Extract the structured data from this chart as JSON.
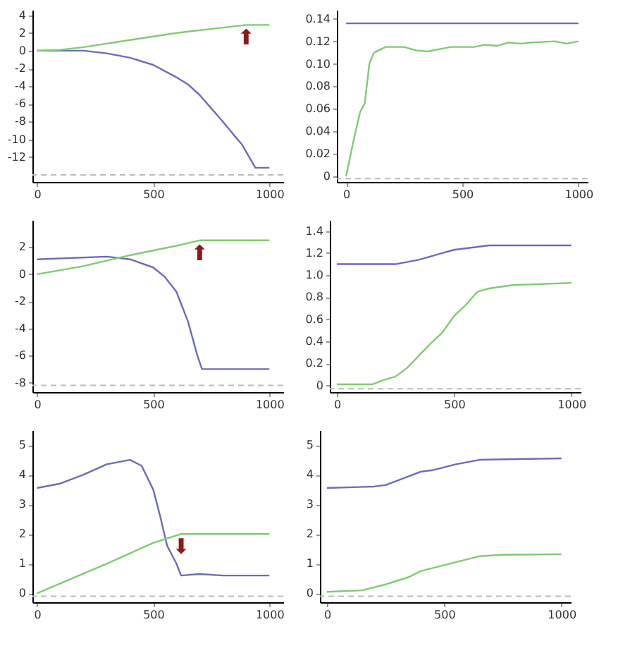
{
  "chart_data": [
    {
      "type": "line",
      "xlim": [
        -20,
        1060
      ],
      "xticks": [
        0,
        500,
        1000
      ],
      "ylim": [
        -14.8,
        4.6
      ],
      "yticks": [
        -12,
        -10,
        -8,
        -6,
        -4,
        -2,
        0,
        2,
        4
      ],
      "grid": false,
      "series": [
        {
          "color": "#6b6bbf",
          "x": [
            0,
            200,
            300,
            400,
            500,
            600,
            650,
            700,
            750,
            800,
            850,
            880,
            940,
            1000
          ],
          "values": [
            0,
            0,
            -0.3,
            -0.8,
            -1.6,
            -3.0,
            -3.8,
            -5.0,
            -6.5,
            -8.0,
            -9.6,
            -10.5,
            -13.2,
            -13.2
          ]
        },
        {
          "color": "#7fcc70",
          "x": [
            0,
            100,
            200,
            400,
            500,
            600,
            800,
            900,
            1000
          ],
          "values": [
            0,
            0.1,
            0.4,
            1.2,
            1.6,
            2.0,
            2.6,
            2.9,
            2.9
          ]
        }
      ],
      "ref_lines": [
        {
          "axis": "y",
          "value": -14,
          "color": "#bbbbbb",
          "line_style": "dashed"
        }
      ],
      "annotations": [
        {
          "text": "⬆",
          "x": 900,
          "y": 2.9
        }
      ]
    },
    {
      "type": "line",
      "xlim": [
        -40,
        1040
      ],
      "xticks": [
        0,
        500,
        1000
      ],
      "ylim": [
        -0.005,
        0.148
      ],
      "yticks": [
        0,
        0.02,
        0.04,
        0.06,
        0.08,
        {
          "value": 0.1,
          "label": "0.10"
        },
        0.12,
        0.14
      ],
      "grid": false,
      "series": [
        {
          "color": "#6b6bbf",
          "x": [
            0,
            1000
          ],
          "values": [
            0.136,
            0.136
          ]
        },
        {
          "color": "#7fcc70",
          "x": [
            0,
            30,
            60,
            80,
            100,
            120,
            170,
            250,
            300,
            350,
            450,
            550,
            600,
            650,
            700,
            750,
            800,
            900,
            950,
            1000
          ],
          "values": [
            0,
            0.03,
            0.057,
            0.065,
            0.1,
            0.11,
            0.115,
            0.115,
            0.112,
            0.111,
            0.115,
            0.115,
            0.117,
            0.116,
            0.119,
            0.118,
            0.119,
            0.12,
            0.118,
            0.12
          ]
        }
      ],
      "ref_lines": [
        {
          "axis": "y",
          "value": -0.002,
          "color": "#bbbbbb",
          "line_style": "dashed"
        }
      ]
    },
    {
      "type": "line",
      "xlim": [
        -20,
        1060
      ],
      "xticks": [
        0,
        500,
        1000
      ],
      "ylim": [
        -8.7,
        4.0
      ],
      "yticks": [
        -8,
        -6,
        -4,
        -2,
        0,
        2
      ],
      "grid": false,
      "series": [
        {
          "color": "#6b6bbf",
          "x": [
            0,
            300,
            400,
            500,
            550,
            600,
            650,
            690,
            710,
            1000
          ],
          "values": [
            1.1,
            1.3,
            1.1,
            0.5,
            -0.2,
            -1.3,
            -3.5,
            -6.0,
            -7.0,
            -7.0
          ]
        },
        {
          "color": "#7fcc70",
          "x": [
            0,
            200,
            400,
            600,
            700,
            1000
          ],
          "values": [
            0,
            0.6,
            1.4,
            2.1,
            2.5,
            2.5
          ]
        }
      ],
      "ref_lines": [
        {
          "axis": "y",
          "value": -8.2,
          "color": "#bbbbbb",
          "line_style": "dashed"
        }
      ],
      "annotations": [
        {
          "text": "⬆",
          "x": 700,
          "y": 2.5
        }
      ]
    },
    {
      "type": "line",
      "xlim": [
        -30,
        1040
      ],
      "xticks": [
        0,
        500,
        1000
      ],
      "ylim": [
        -0.06,
        1.5
      ],
      "yticks": [
        0,
        0.2,
        0.4,
        0.6,
        0.8,
        {
          "value": 1,
          "label": "1.0"
        },
        1.2,
        1.4
      ],
      "grid": false,
      "series": [
        {
          "color": "#6b6bbf",
          "x": [
            0,
            250,
            350,
            450,
            500,
            650,
            1000
          ],
          "values": [
            1.1,
            1.1,
            1.14,
            1.2,
            1.23,
            1.27,
            1.27
          ]
        },
        {
          "color": "#7fcc70",
          "x": [
            0,
            150,
            200,
            250,
            300,
            350,
            400,
            450,
            500,
            550,
            600,
            650,
            750,
            1000
          ],
          "values": [
            0.01,
            0.01,
            0.05,
            0.08,
            0.16,
            0.27,
            0.38,
            0.48,
            0.63,
            0.73,
            0.85,
            0.88,
            0.91,
            0.93
          ]
        }
      ],
      "ref_lines": [
        {
          "axis": "y",
          "value": -0.03,
          "color": "#bbbbbb",
          "line_style": "dashed"
        }
      ]
    },
    {
      "type": "line",
      "xlim": [
        -20,
        1060
      ],
      "xticks": [
        0,
        500,
        1000
      ],
      "ylim": [
        -0.3,
        5.5
      ],
      "yticks": [
        0,
        1,
        2,
        3,
        4,
        5
      ],
      "grid": false,
      "series": [
        {
          "color": "#6b6bbf",
          "x": [
            0,
            100,
            200,
            300,
            400,
            450,
            500,
            530,
            560,
            600,
            620,
            700,
            800,
            1000
          ],
          "values": [
            3.55,
            3.7,
            4.0,
            4.35,
            4.5,
            4.3,
            3.5,
            2.6,
            1.6,
            1.0,
            0.6,
            0.65,
            0.6,
            0.6
          ]
        },
        {
          "color": "#7fcc70",
          "x": [
            0,
            300,
            500,
            620,
            1000
          ],
          "values": [
            0,
            1.0,
            1.7,
            2.0,
            2.0
          ]
        }
      ],
      "ref_lines": [
        {
          "axis": "y",
          "value": -0.1,
          "color": "#bbbbbb",
          "line_style": "dashed"
        }
      ],
      "annotations": [
        {
          "text": "⬇",
          "x": 620,
          "y": 2.0
        }
      ]
    },
    {
      "type": "line",
      "xlim": [
        -30,
        1040
      ],
      "xticks": [
        0,
        500,
        1000
      ],
      "ylim": [
        -0.3,
        5.5
      ],
      "yticks": [
        0,
        1,
        2,
        3,
        4,
        5
      ],
      "grid": false,
      "series": [
        {
          "color": "#6b6bbf",
          "x": [
            0,
            200,
            250,
            300,
            400,
            450,
            550,
            650,
            1000
          ],
          "values": [
            3.55,
            3.6,
            3.65,
            3.8,
            4.1,
            4.15,
            4.35,
            4.5,
            4.55
          ]
        },
        {
          "color": "#7fcc70",
          "x": [
            0,
            150,
            250,
            350,
            400,
            500,
            550,
            650,
            750,
            1000
          ],
          "values": [
            0.05,
            0.1,
            0.3,
            0.55,
            0.75,
            0.95,
            1.05,
            1.25,
            1.3,
            1.32
          ]
        }
      ],
      "ref_lines": [
        {
          "axis": "y",
          "value": -0.1,
          "color": "#bbbbbb",
          "line_style": "dashed"
        }
      ]
    }
  ]
}
